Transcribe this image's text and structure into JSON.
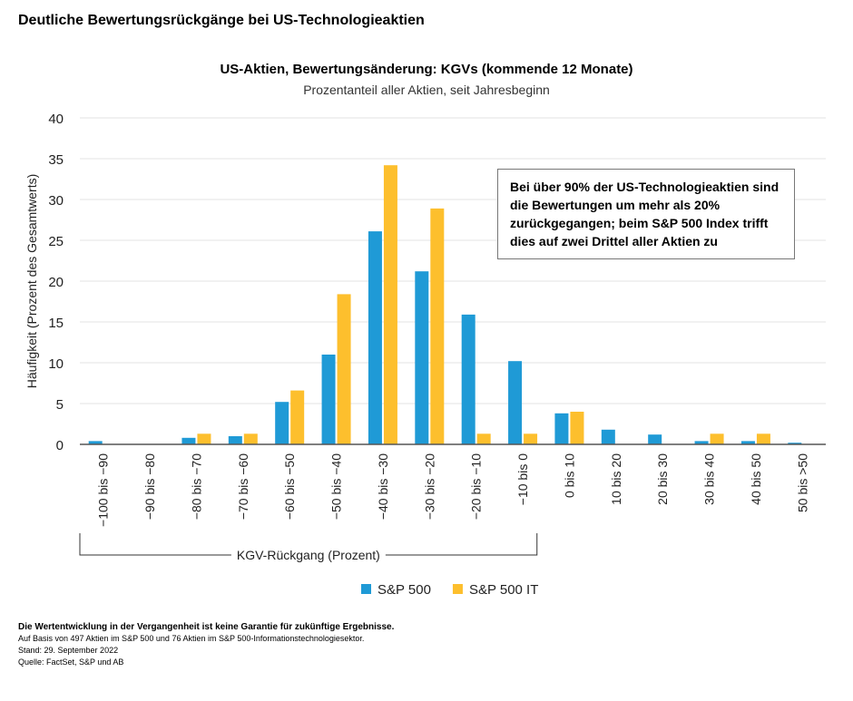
{
  "header": "Deutliche Bewertungsrückgänge bei US-Technologieaktien",
  "chart_data": {
    "type": "bar",
    "title": "US-Aktien, Bewertungsänderung: KGVs (kommende 12 Monate)",
    "subtitle": "Prozentanteil aller Aktien, seit Jahresbeginn",
    "ylabel": "Häufigkeit (Prozent des Gesamtwerts)",
    "xlabel": "KGV-Rückgang (Prozent)",
    "ylim": [
      0,
      40
    ],
    "yticks": [
      0,
      5,
      10,
      15,
      20,
      25,
      30,
      35,
      40
    ],
    "grid": true,
    "legend": "bottom",
    "categories": [
      "−100 bis −90",
      "−90 bis −80",
      "−80 bis −70",
      "−70 bis −60",
      "−60 bis −50",
      "−50 bis −40",
      "−40 bis −30",
      "−30 bis −20",
      "−20 bis −10",
      "−10 bis 0",
      "0 bis 10",
      "10 bis 20",
      "20 bis 30",
      "30 bis 40",
      "40 bis 50",
      "50 bis >50"
    ],
    "series": [
      {
        "name": "S&P 500",
        "color": "#1f9ad6",
        "values": [
          0.4,
          0,
          0.8,
          1.0,
          5.2,
          11.0,
          26.1,
          21.2,
          15.9,
          10.2,
          3.8,
          1.8,
          1.2,
          0.4,
          0.4,
          0.2
        ]
      },
      {
        "name": "S&P 500 IT",
        "color": "#fdbf2d",
        "values": [
          0,
          0,
          1.3,
          1.3,
          6.6,
          18.4,
          34.2,
          28.9,
          1.3,
          1.3,
          4.0,
          0,
          0,
          1.3,
          1.3,
          0
        ]
      }
    ],
    "annotation": "Bei über 90% der US-Technologieaktien sind die Bewertungen um mehr als 20% zurückgegangen; beim S&P 500 Index trifft dies auf zwei Drittel aller Aktien zu"
  },
  "footer": {
    "disclaimer": "Die Wertentwicklung in der Vergangenheit ist keine Garantie für zukünftige Ergebnisse.",
    "basis": "Auf Basis von 497 Aktien im S&P 500 und 76 Aktien im S&P 500-Informationstechnologiesektor.",
    "date": "Stand: 29. September 2022",
    "source": "Quelle: FactSet, S&P und AB"
  }
}
